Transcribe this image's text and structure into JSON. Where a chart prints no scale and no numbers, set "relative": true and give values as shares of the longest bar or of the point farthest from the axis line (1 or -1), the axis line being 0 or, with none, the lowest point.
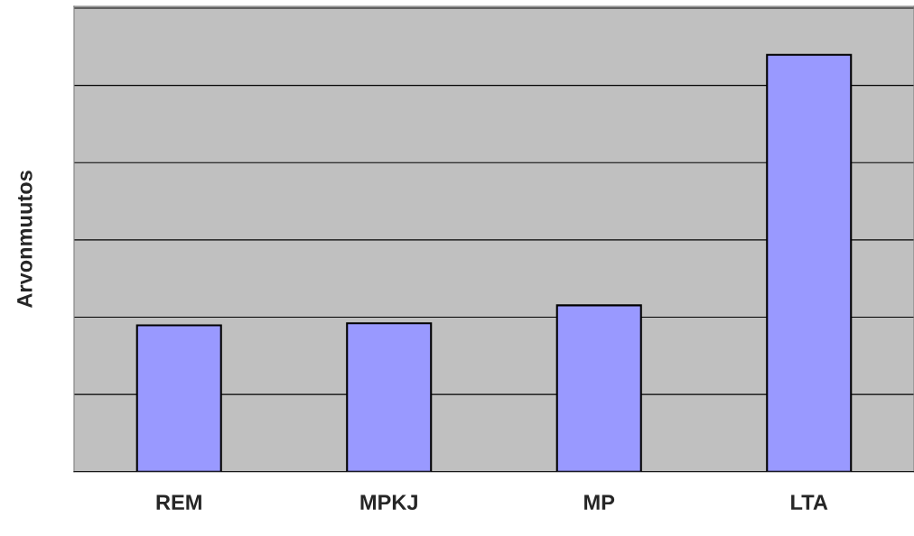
{
  "chart_data": {
    "type": "bar",
    "ylabel": "Arvonmuutos",
    "categories": [
      "REM",
      "MPKJ",
      "MP",
      "LTA"
    ],
    "values": [
      0.351,
      0.356,
      0.399,
      1
    ],
    "color": "#9999ff",
    "relative": true,
    "grid": "y",
    "legend": false
  }
}
